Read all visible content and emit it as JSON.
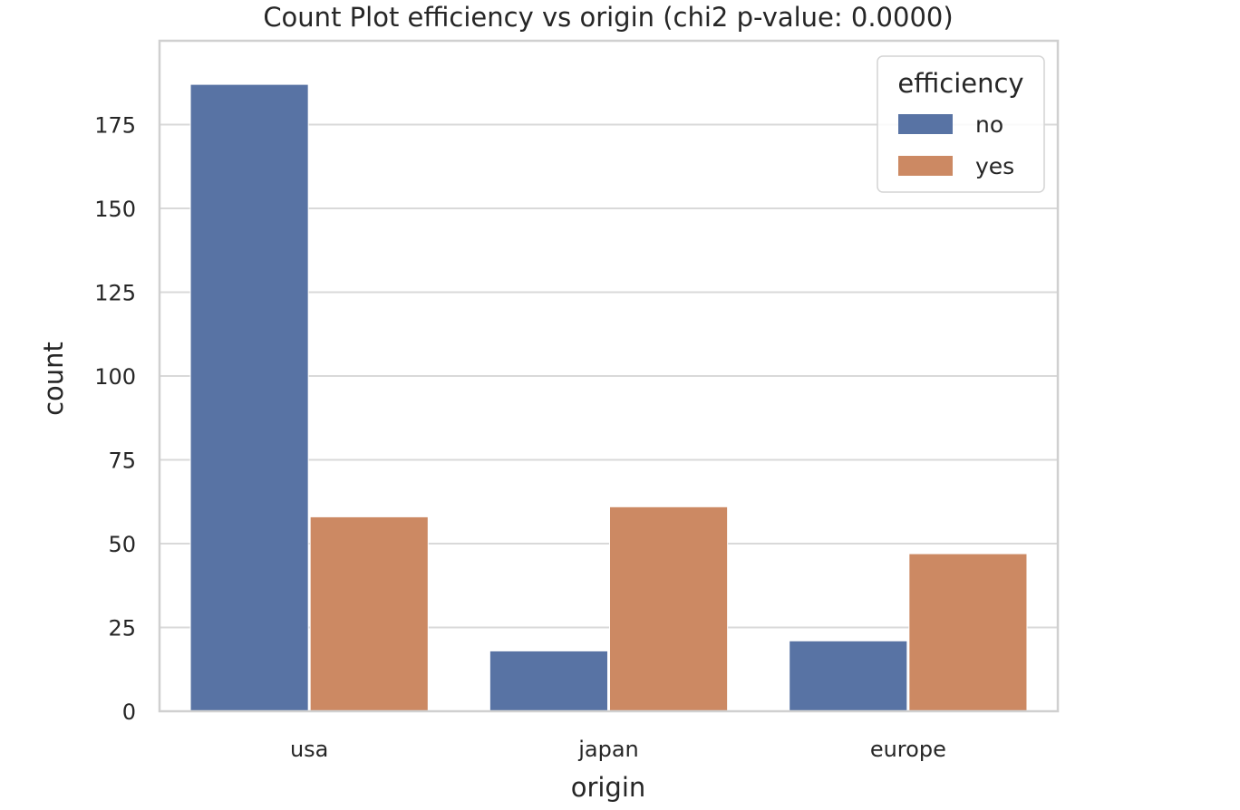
{
  "chart_data": {
    "type": "bar",
    "title": "Count Plot efficiency vs origin (chi2 p-value: 0.0000)",
    "xlabel": "origin",
    "ylabel": "count",
    "categories": [
      "usa",
      "japan",
      "europe"
    ],
    "series": [
      {
        "name": "no",
        "values": [
          187,
          18,
          21
        ],
        "color": "#5873a4"
      },
      {
        "name": "yes",
        "values": [
          58,
          61,
          47
        ],
        "color": "#cc8963"
      }
    ],
    "ylim": [
      0,
      200
    ],
    "yticks": [
      0,
      25,
      50,
      75,
      100,
      125,
      150,
      175
    ],
    "ytick_labels": [
      "0",
      "25",
      "50",
      "75",
      "100",
      "125",
      "150",
      "175"
    ],
    "legend": {
      "title": "efficiency",
      "placement": "top-right"
    },
    "grid": true,
    "background": "#ffffff"
  }
}
